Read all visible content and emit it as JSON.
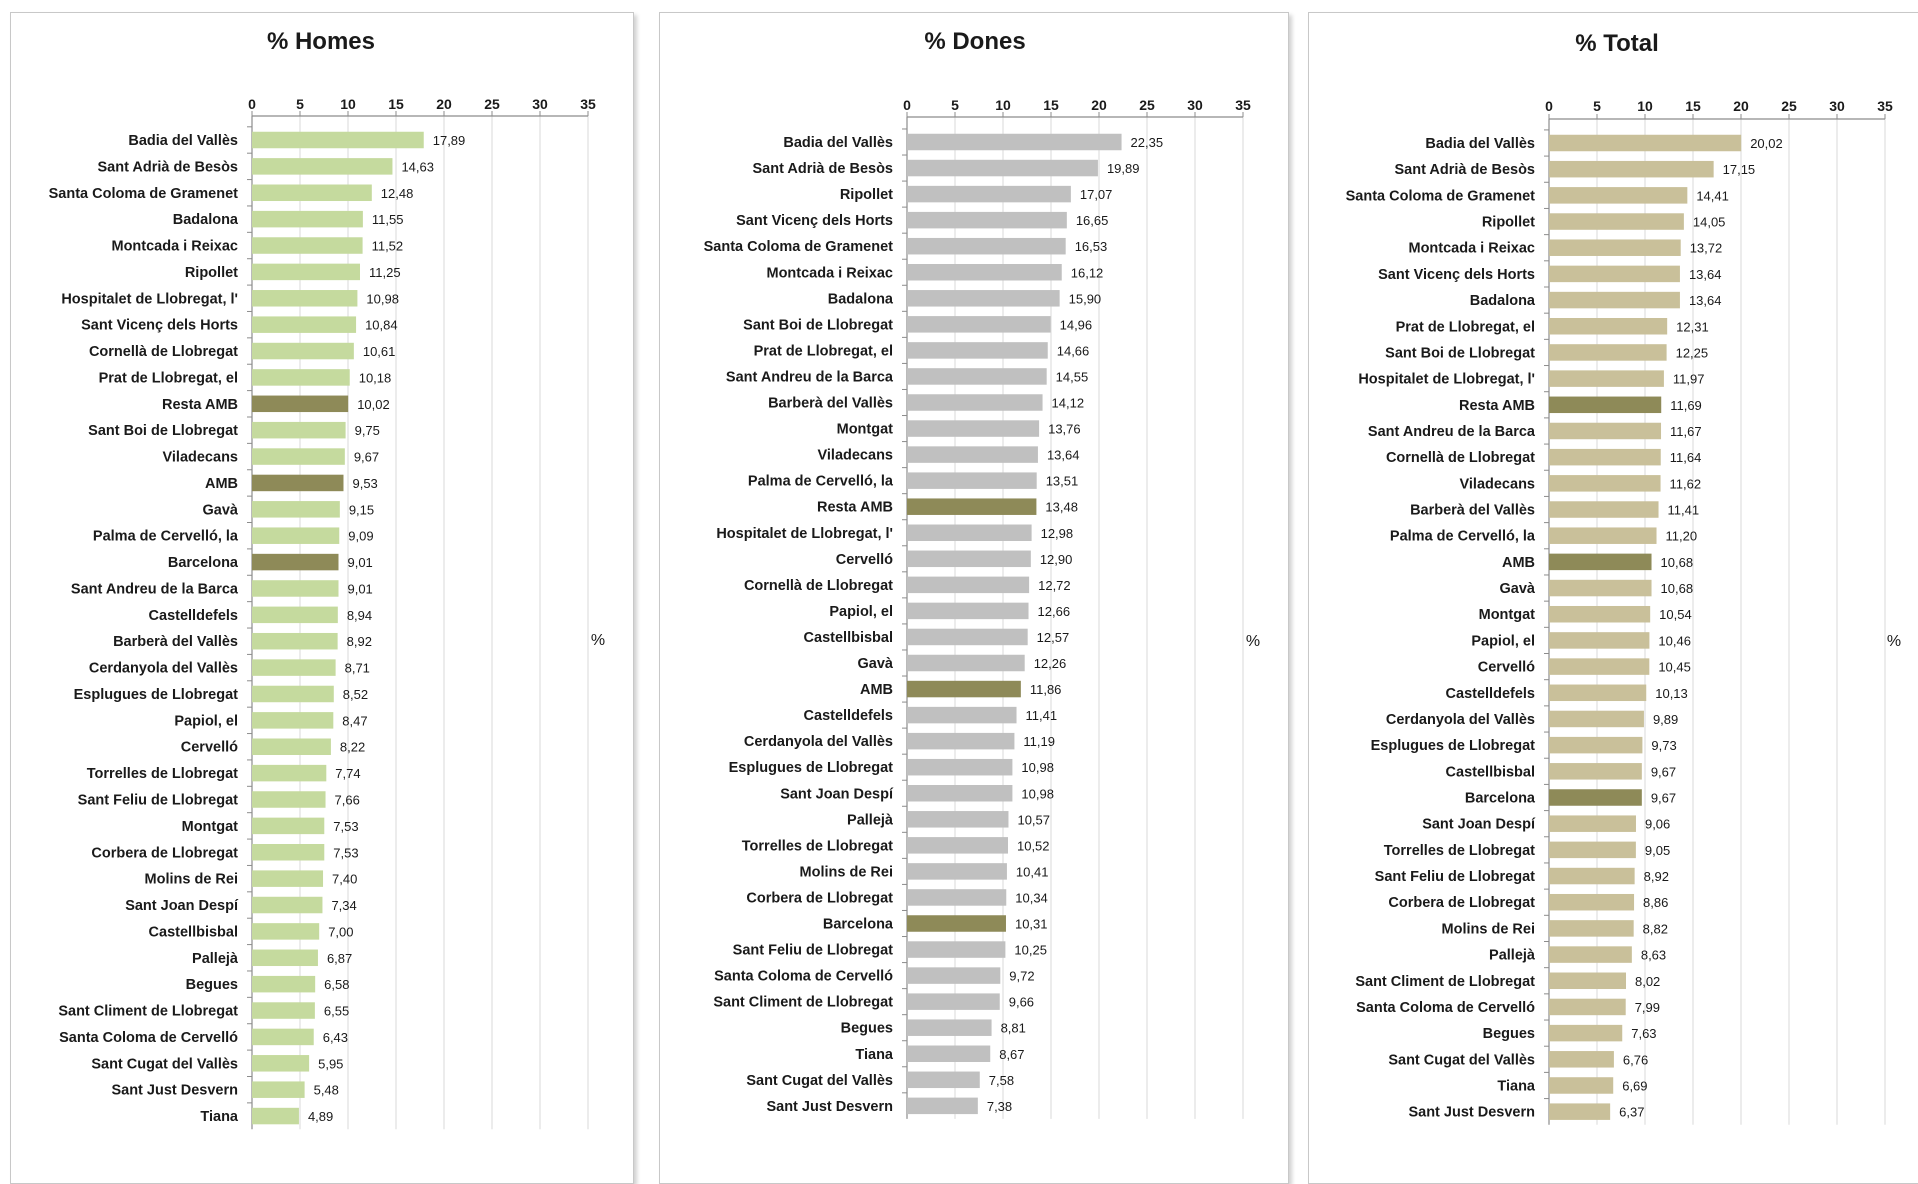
{
  "colors": {
    "highlight": "#8E8A58",
    "grid": "#d9d9d9",
    "axis": "#8c8c8c"
  },
  "chart_data": [
    {
      "type": "bar",
      "orientation": "horizontal",
      "title": "% Homes",
      "xlabel": "%",
      "xlim": [
        0,
        35
      ],
      "xticks": [
        "0",
        "5",
        "10",
        "15",
        "20",
        "25",
        "30",
        "35"
      ],
      "grid": true,
      "bar_color": "#C5DA9E",
      "highlight_color": "#8E8A58",
      "highlighted": [
        "Resta AMB",
        "AMB",
        "Barcelona"
      ],
      "categories": [
        "Badia del Vallès",
        "Sant Adrià de Besòs",
        "Santa Coloma de Gramenet",
        "Badalona",
        "Montcada i Reixac",
        "Ripollet",
        "Hospitalet de Llobregat, l'",
        "Sant Vicenç dels Horts",
        "Cornellà de Llobregat",
        "Prat de Llobregat, el",
        "Resta AMB",
        "Sant Boi de Llobregat",
        "Viladecans",
        "AMB",
        "Gavà",
        "Palma de Cervelló, la",
        "Barcelona",
        "Sant Andreu de la Barca",
        "Castelldefels",
        "Barberà del Vallès",
        "Cerdanyola del Vallès",
        "Esplugues de Llobregat",
        "Papiol, el",
        "Cervelló",
        "Torrelles de Llobregat",
        "Sant Feliu de Llobregat",
        "Montgat",
        "Corbera de Llobregat",
        "Molins de Rei",
        "Sant Joan Despí",
        "Castellbisbal",
        "Pallejà",
        "Begues",
        "Sant Climent de Llobregat",
        "Santa Coloma de Cervelló",
        "Sant Cugat del Vallès",
        "Sant Just Desvern",
        "Tiana"
      ],
      "values": [
        17.89,
        14.63,
        12.48,
        11.55,
        11.52,
        11.25,
        10.98,
        10.84,
        10.61,
        10.18,
        10.02,
        9.75,
        9.67,
        9.53,
        9.15,
        9.09,
        9.01,
        9.01,
        8.94,
        8.92,
        8.71,
        8.52,
        8.47,
        8.22,
        7.74,
        7.66,
        7.53,
        7.53,
        7.4,
        7.34,
        7.0,
        6.87,
        6.58,
        6.55,
        6.43,
        5.95,
        5.48,
        4.89
      ],
      "labels": [
        "17,89",
        "14,63",
        "12,48",
        "11,55",
        "11,52",
        "11,25",
        "10,98",
        "10,84",
        "10,61",
        "10,18",
        "10,02",
        "9,75",
        "9,67",
        "9,53",
        "9,15",
        "9,09",
        "9,01",
        "9,01",
        "8,94",
        "8,92",
        "8,71",
        "8,52",
        "8,47",
        "8,22",
        "7,74",
        "7,66",
        "7,53",
        "7,53",
        "7,40",
        "7,34",
        "7,00",
        "6,87",
        "6,58",
        "6,55",
        "6,43",
        "5,95",
        "5,48",
        "4,89"
      ]
    },
    {
      "type": "bar",
      "orientation": "horizontal",
      "title": "% Dones",
      "xlabel": "%",
      "xlim": [
        0,
        35
      ],
      "xticks": [
        "0",
        "5",
        "10",
        "15",
        "20",
        "25",
        "30",
        "35"
      ],
      "grid": true,
      "bar_color": "#C0C0C0",
      "highlight_color": "#8E8A58",
      "highlighted": [
        "Resta AMB",
        "AMB",
        "Barcelona"
      ],
      "categories": [
        "Badia del Vallès",
        "Sant Adrià de Besòs",
        "Ripollet",
        "Sant Vicenç dels Horts",
        "Santa Coloma de Gramenet",
        "Montcada i Reixac",
        "Badalona",
        "Sant Boi de Llobregat",
        "Prat de Llobregat, el",
        "Sant Andreu de la Barca",
        "Barberà del Vallès",
        "Montgat",
        "Viladecans",
        "Palma de Cervelló, la",
        "Resta AMB",
        "Hospitalet de Llobregat, l'",
        "Cervelló",
        "Cornellà de Llobregat",
        "Papiol, el",
        "Castellbisbal",
        "Gavà",
        "AMB",
        "Castelldefels",
        "Cerdanyola del Vallès",
        "Esplugues de Llobregat",
        "Sant Joan Despí",
        "Pallejà",
        "Torrelles de Llobregat",
        "Molins de Rei",
        "Corbera de Llobregat",
        "Barcelona",
        "Sant Feliu de Llobregat",
        "Santa Coloma de Cervelló",
        "Sant Climent de Llobregat",
        "Begues",
        "Tiana",
        "Sant Cugat del Vallès",
        "Sant Just Desvern"
      ],
      "values": [
        22.35,
        19.89,
        17.07,
        16.65,
        16.53,
        16.12,
        15.9,
        14.96,
        14.66,
        14.55,
        14.12,
        13.76,
        13.64,
        13.51,
        13.48,
        12.98,
        12.9,
        12.72,
        12.66,
        12.57,
        12.26,
        11.86,
        11.41,
        11.19,
        10.98,
        10.98,
        10.57,
        10.52,
        10.41,
        10.34,
        10.31,
        10.25,
        9.72,
        9.66,
        8.81,
        8.67,
        7.58,
        7.38
      ],
      "labels": [
        "22,35",
        "19,89",
        "17,07",
        "16,65",
        "16,53",
        "16,12",
        "15,90",
        "14,96",
        "14,66",
        "14,55",
        "14,12",
        "13,76",
        "13,64",
        "13,51",
        "13,48",
        "12,98",
        "12,90",
        "12,72",
        "12,66",
        "12,57",
        "12,26",
        "11,86",
        "11,41",
        "11,19",
        "10,98",
        "10,98",
        "10,57",
        "10,52",
        "10,41",
        "10,34",
        "10,31",
        "10,25",
        "9,72",
        "9,66",
        "8,81",
        "8,67",
        "7,58",
        "7,38"
      ]
    },
    {
      "type": "bar",
      "orientation": "horizontal",
      "title": "% Total",
      "xlabel": "%",
      "xlim": [
        0,
        35
      ],
      "xticks": [
        "0",
        "5",
        "10",
        "15",
        "20",
        "25",
        "30",
        "35"
      ],
      "grid": true,
      "bar_color": "#C9C09A",
      "highlight_color": "#8E8A58",
      "highlighted": [
        "Resta AMB",
        "AMB",
        "Barcelona"
      ],
      "categories": [
        "Badia del Vallès",
        "Sant Adrià de Besòs",
        "Santa Coloma de Gramenet",
        "Ripollet",
        "Montcada i Reixac",
        "Sant Vicenç dels Horts",
        "Badalona",
        "Prat de Llobregat, el",
        "Sant Boi de Llobregat",
        "Hospitalet de Llobregat, l'",
        "Resta AMB",
        "Sant Andreu de la Barca",
        "Cornellà de Llobregat",
        "Viladecans",
        "Barberà del Vallès",
        "Palma de Cervelló, la",
        "AMB",
        "Gavà",
        "Montgat",
        "Papiol, el",
        "Cervelló",
        "Castelldefels",
        "Cerdanyola del Vallès",
        "Esplugues de Llobregat",
        "Castellbisbal",
        "Barcelona",
        "Sant Joan Despí",
        "Torrelles de Llobregat",
        "Sant Feliu de Llobregat",
        "Corbera de Llobregat",
        "Molins de Rei",
        "Pallejà",
        "Sant Climent de Llobregat",
        "Santa Coloma de Cervelló",
        "Begues",
        "Sant Cugat del Vallès",
        "Tiana",
        "Sant Just Desvern"
      ],
      "values": [
        20.02,
        17.15,
        14.41,
        14.05,
        13.72,
        13.64,
        13.64,
        12.31,
        12.25,
        11.97,
        11.69,
        11.67,
        11.64,
        11.62,
        11.41,
        11.2,
        10.68,
        10.68,
        10.54,
        10.46,
        10.45,
        10.13,
        9.89,
        9.73,
        9.67,
        9.67,
        9.06,
        9.05,
        8.92,
        8.86,
        8.82,
        8.63,
        8.02,
        7.99,
        7.63,
        6.76,
        6.69,
        6.37
      ],
      "labels": [
        "20,02",
        "17,15",
        "14,41",
        "14,05",
        "13,72",
        "13,64",
        "13,64",
        "12,31",
        "12,25",
        "11,97",
        "11,69",
        "11,67",
        "11,64",
        "11,62",
        "11,41",
        "11,20",
        "10,68",
        "10,68",
        "10,54",
        "10,46",
        "10,45",
        "10,13",
        "9,89",
        "9,73",
        "9,67",
        "9,67",
        "9,06",
        "9,05",
        "8,92",
        "8,86",
        "8,82",
        "8,63",
        "8,02",
        "7,99",
        "7,63",
        "6,76",
        "6,69",
        "6,37"
      ]
    }
  ]
}
